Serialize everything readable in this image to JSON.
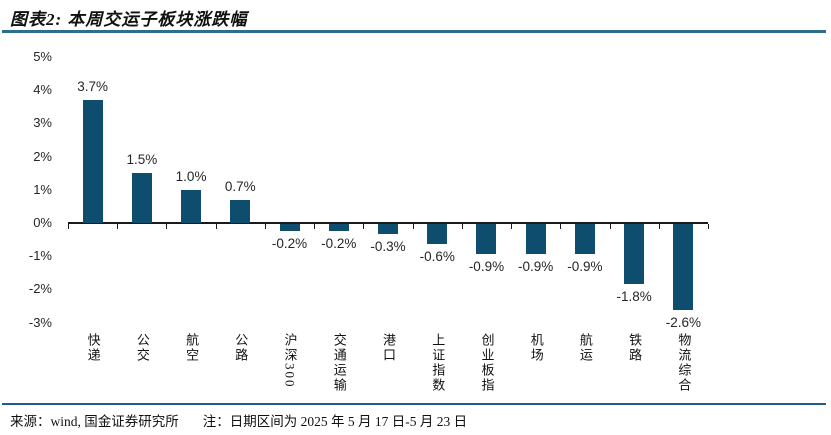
{
  "title": "图表2: 本周交运子板块涨跌幅",
  "chart_data": {
    "type": "bar",
    "categories": [
      "快递",
      "公交",
      "航空",
      "公路",
      "沪深300",
      "交通运输",
      "港口",
      "上证指数",
      "创业板指",
      "机场",
      "航运",
      "铁路",
      "物流综合"
    ],
    "values": [
      3.7,
      1.5,
      1.0,
      0.7,
      -0.2,
      -0.2,
      -0.3,
      -0.6,
      -0.9,
      -0.9,
      -0.9,
      -1.8,
      -2.6
    ],
    "value_labels": [
      "3.7%",
      "1.5%",
      "1.0%",
      "0.7%",
      "-0.2%",
      "-0.2%",
      "-0.3%",
      "-0.6%",
      "-0.9%",
      "-0.9%",
      "-0.9%",
      "-1.8%",
      "-2.6%"
    ],
    "title": "本周交运子板块涨跌幅",
    "xlabel": "",
    "ylabel": "",
    "ylim": [
      -3,
      5
    ],
    "yticks": [
      "5%",
      "4%",
      "3%",
      "2%",
      "1%",
      "0%",
      "-1%",
      "-2%",
      "-3%"
    ],
    "grid": false,
    "legend": false,
    "bar_color": "#0E4D6E"
  },
  "colors": {
    "bar": "#0E4D6E",
    "top_rule": "#2E6D8E",
    "bottom_rule": "#1F5C8C",
    "axis": "#1A1A1A",
    "text": "#262626"
  },
  "footer": {
    "source": "来源：wind, 国金证券研究所",
    "note": "注：日期区间为 2025 年 5 月 17 日-5 月 23 日"
  }
}
